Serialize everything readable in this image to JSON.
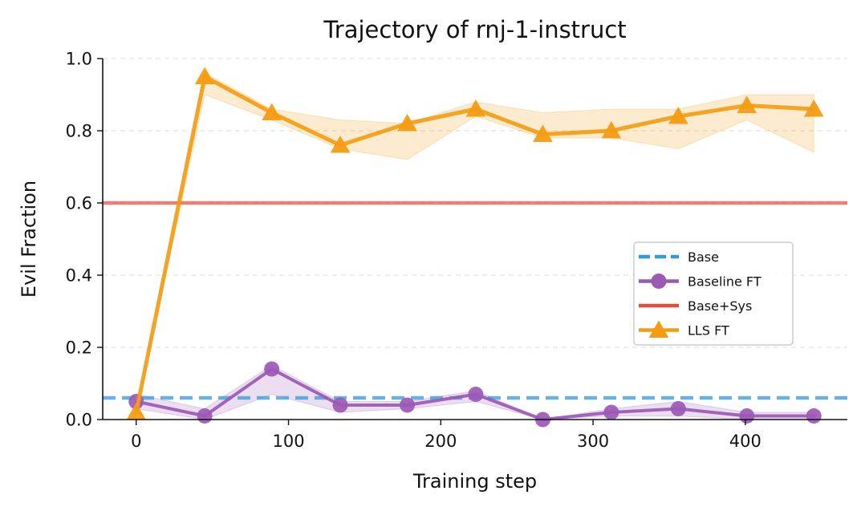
{
  "chart_data": {
    "type": "line",
    "title": "Trajectory of rnj-1-instruct",
    "xlabel": "Training step",
    "ylabel": "Evil Fraction",
    "xlim": [
      -22,
      467
    ],
    "ylim": [
      0,
      1.0
    ],
    "x_ticks": [
      0,
      100,
      200,
      300,
      400
    ],
    "y_ticks": [
      0.0,
      0.2,
      0.4,
      0.6,
      0.8,
      1.0
    ],
    "y_tick_labels": [
      "0.0",
      "0.2",
      "0.4",
      "0.6",
      "0.8",
      "1.0"
    ],
    "grid": "horizontal-dashed",
    "legend_position": "center-right",
    "x": [
      0,
      45,
      89,
      134,
      178,
      223,
      267,
      312,
      356,
      401,
      445
    ],
    "series": [
      {
        "name": "Base",
        "kind": "hline",
        "value": 0.06,
        "color": "#3498db",
        "style": "dashed"
      },
      {
        "name": "Baseline FT",
        "kind": "line",
        "marker": "circle",
        "color": "#9b59b6",
        "values": [
          0.05,
          0.01,
          0.14,
          0.04,
          0.04,
          0.07,
          0.0,
          0.02,
          0.03,
          0.01,
          0.01
        ],
        "lower": [
          0.03,
          0.0,
          0.07,
          0.02,
          0.03,
          0.05,
          0.0,
          0.01,
          0.01,
          0.0,
          0.0
        ],
        "upper": [
          0.07,
          0.03,
          0.15,
          0.05,
          0.05,
          0.08,
          0.0,
          0.03,
          0.05,
          0.02,
          0.02
        ]
      },
      {
        "name": "Base+Sys",
        "kind": "hline",
        "value": 0.6,
        "color": "#e74c3c",
        "style": "solid"
      },
      {
        "name": "LLS FT",
        "kind": "line",
        "marker": "triangle",
        "color": "#f39c12",
        "values": [
          0.02,
          0.95,
          0.85,
          0.76,
          0.82,
          0.86,
          0.79,
          0.8,
          0.84,
          0.87,
          0.86
        ],
        "lower": [
          0.02,
          0.9,
          0.83,
          0.75,
          0.72,
          0.84,
          0.78,
          0.78,
          0.75,
          0.83,
          0.74
        ],
        "upper": [
          0.02,
          0.96,
          0.86,
          0.83,
          0.82,
          0.88,
          0.85,
          0.86,
          0.86,
          0.9,
          0.9
        ]
      }
    ]
  }
}
